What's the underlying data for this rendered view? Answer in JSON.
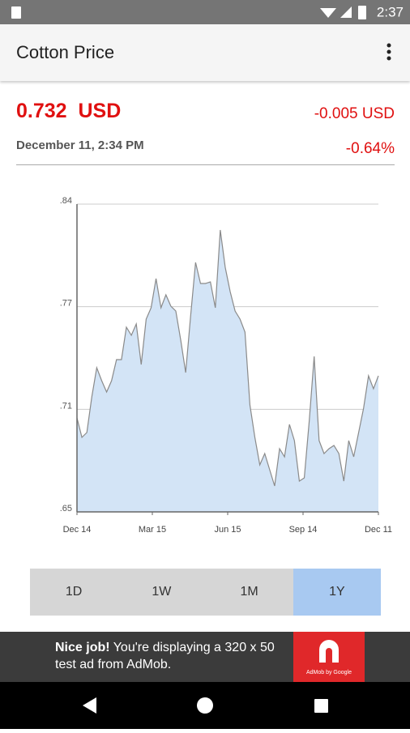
{
  "status_bar": {
    "time": "2:37"
  },
  "app_bar": {
    "title": "Cotton Price"
  },
  "quote": {
    "price": "0.732",
    "currency": "USD",
    "change": "-0.005 USD",
    "date": "December 11, 2:34 PM",
    "percent": "-0.64%"
  },
  "chart_data": {
    "type": "area",
    "color": "#d3e4f6",
    "line_color": "#8a8a8a",
    "grid": true,
    "values": [
      0.708,
      0.696,
      0.699,
      0.721,
      0.739,
      0.731,
      0.724,
      0.731,
      0.744,
      0.744,
      0.764,
      0.759,
      0.766,
      0.741,
      0.769,
      0.776,
      0.794,
      0.776,
      0.784,
      0.777,
      0.774,
      0.756,
      0.736,
      0.771,
      0.804,
      0.791,
      0.791,
      0.792,
      0.776,
      0.824,
      0.801,
      0.786,
      0.774,
      0.769,
      0.761,
      0.716,
      0.696,
      0.679,
      0.686,
      0.676,
      0.666,
      0.689,
      0.684,
      0.704,
      0.694,
      0.669,
      0.671,
      0.706,
      0.746,
      0.694,
      0.686,
      0.689,
      0.691,
      0.686,
      0.669,
      0.694,
      0.684,
      0.699,
      0.714,
      0.734,
      0.726,
      0.734
    ],
    "xlim": [
      0,
      61
    ],
    "xticks": [
      {
        "value": 0,
        "label": "Dec 14"
      },
      {
        "value": 15.25,
        "label": "Mar 15"
      },
      {
        "value": 30.5,
        "label": "Jun 15"
      },
      {
        "value": 45.75,
        "label": "Sep 14"
      },
      {
        "value": 61,
        "label": "Dec 11"
      }
    ],
    "ylim": [
      0.65,
      0.84
    ],
    "yticks": [
      {
        "value": 0.65,
        "label": ".65"
      },
      {
        "value": 0.7133,
        "label": ".71"
      },
      {
        "value": 0.7767,
        "label": ".77"
      },
      {
        "value": 0.84,
        "label": ".84"
      }
    ]
  },
  "range_buttons": [
    "1D",
    "1W",
    "1M",
    "1Y"
  ],
  "selected_range": "1Y",
  "ad": {
    "headline": "Nice job!",
    "text": "You're displaying a 320 x 50 test ad from AdMob.",
    "logo_text": "AdMob by Google"
  }
}
